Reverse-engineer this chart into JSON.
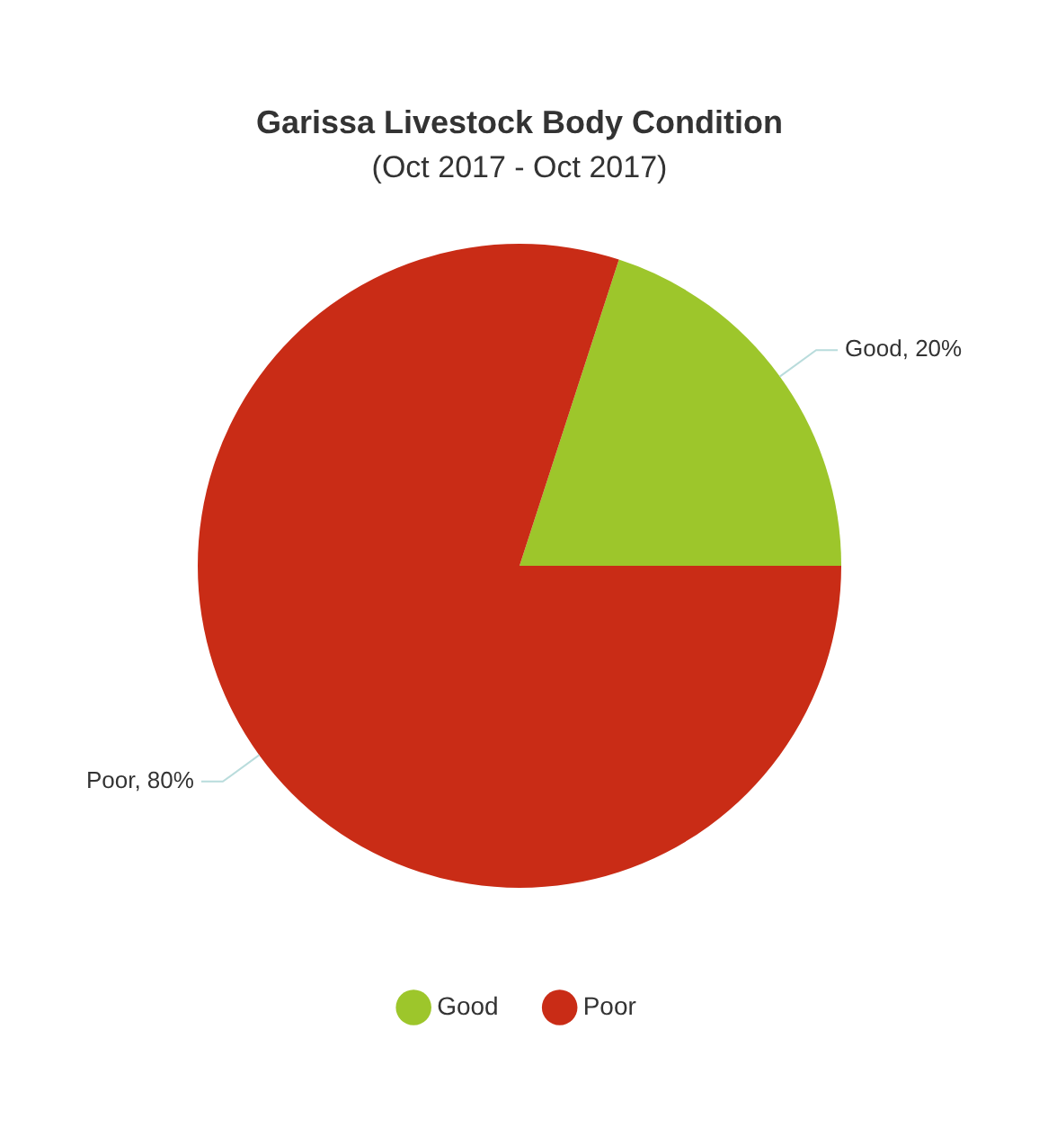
{
  "chart_data": {
    "type": "pie",
    "title": "Garissa Livestock Body Condition",
    "subtitle": "(Oct 2017 - Oct 2017)",
    "categories": [
      "Good",
      "Poor"
    ],
    "values": [
      20,
      80
    ],
    "colors": [
      "#9dc62b",
      "#c92c16"
    ],
    "value_labels": [
      "Good, 20%",
      "Poor, 80%"
    ],
    "legend": "bottom"
  }
}
